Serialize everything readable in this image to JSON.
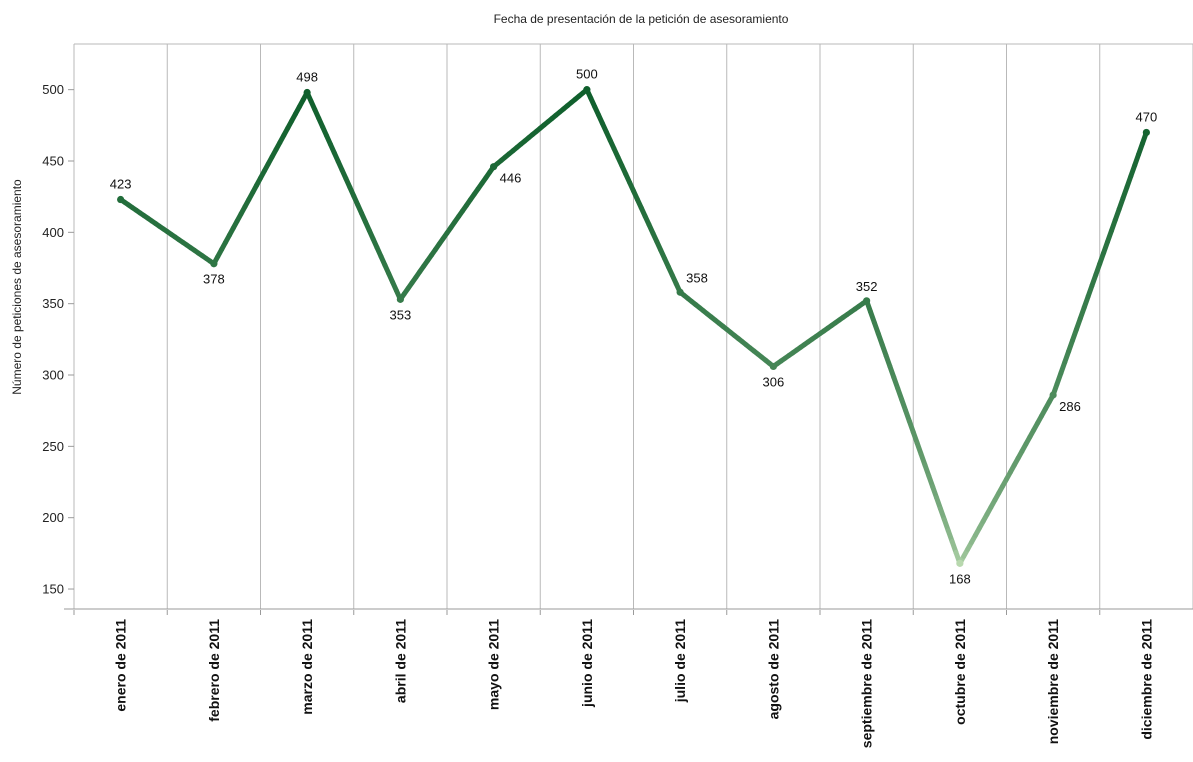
{
  "chart_data": {
    "type": "line",
    "title": "Fecha de presentación de la petición de asesoramiento",
    "ylabel": "Número de peticiones de asesoramiento",
    "xlabel": "",
    "categories": [
      "enero de 2011",
      "febrero de 2011",
      "marzo de 2011",
      "abril de 2011",
      "mayo de 2011",
      "junio de 2011",
      "julio de 2011",
      "agosto de 2011",
      "septiembre de 2011",
      "octubre de 2011",
      "noviembre de 2011",
      "diciembre de 2011"
    ],
    "values": [
      423,
      378,
      498,
      353,
      446,
      500,
      358,
      306,
      352,
      168,
      286,
      470
    ],
    "ylim": [
      136,
      532
    ],
    "yticks": [
      150,
      200,
      250,
      300,
      350,
      400,
      450,
      500
    ],
    "grid": "vertical",
    "legend": "none",
    "color_scale": {
      "low": "#b8d8ae",
      "high": "#0f5f2c"
    }
  }
}
